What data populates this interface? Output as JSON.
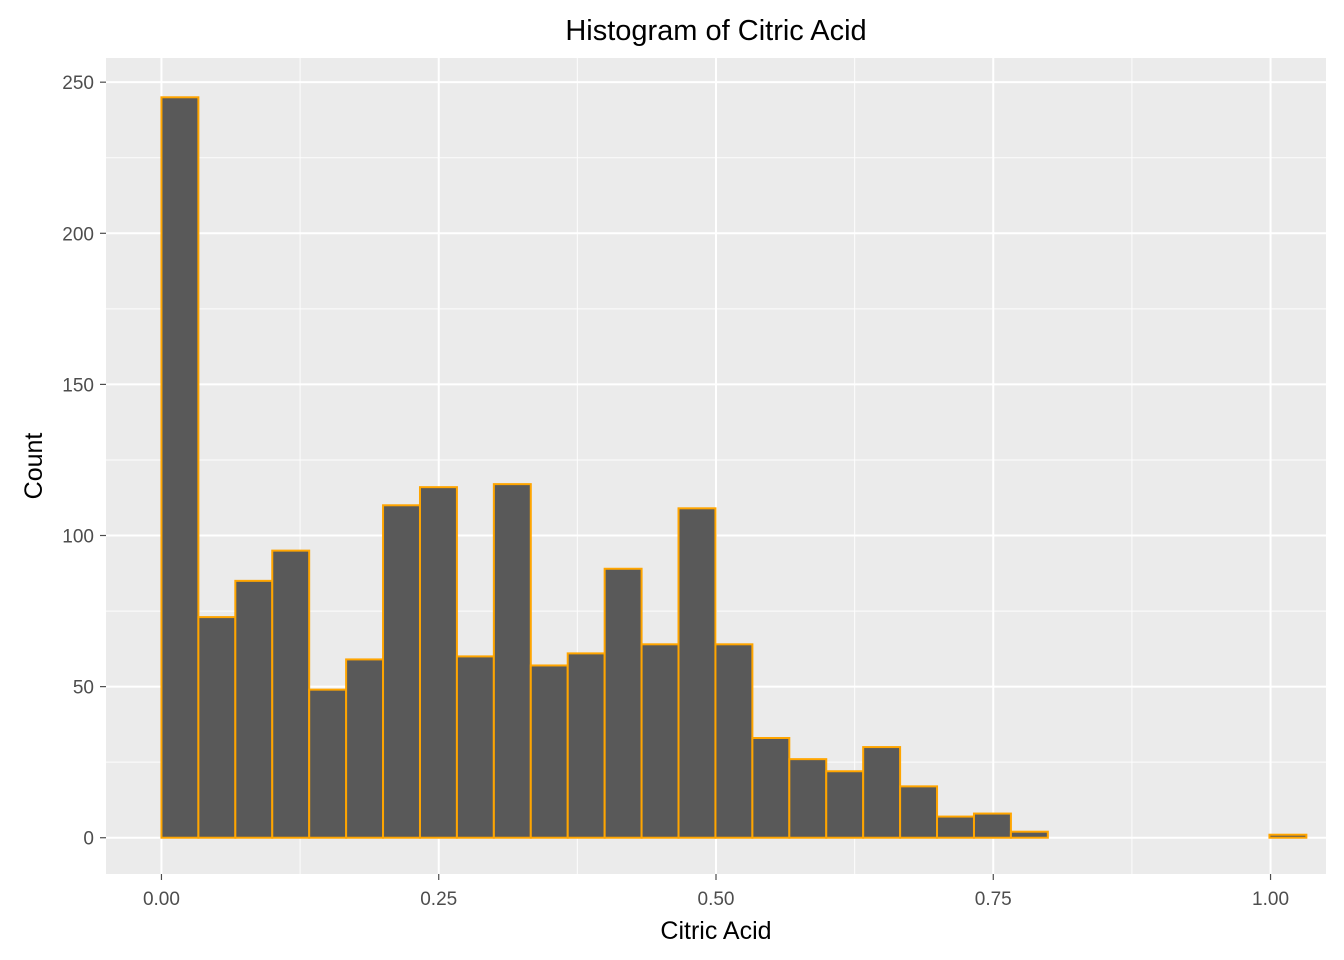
{
  "chart_data": {
    "type": "bar",
    "title": "Histogram of Citric Acid",
    "xlabel": "Citric Acid",
    "ylabel": "Count",
    "bin_width": 0.0333,
    "bin_start": -0.0333,
    "x": [
      -0.0167,
      0.0167,
      0.05,
      0.0833,
      0.1167,
      0.15,
      0.1833,
      0.2167,
      0.25,
      0.2833,
      0.3167,
      0.35,
      0.3833,
      0.4167,
      0.45,
      0.4833,
      0.5167,
      0.55,
      0.5833,
      0.6167,
      0.65,
      0.6833,
      0.7167,
      0.75,
      0.7833,
      0.8167,
      0.85,
      0.8833,
      0.9167,
      0.95,
      0.9833,
      1.0167
    ],
    "values": [
      0,
      245,
      73,
      85,
      95,
      49,
      59,
      110,
      116,
      60,
      117,
      57,
      61,
      89,
      64,
      109,
      64,
      33,
      26,
      22,
      30,
      17,
      7,
      8,
      2,
      0,
      0,
      0,
      0,
      0,
      0,
      1
    ],
    "xlim": [
      -0.05,
      1.05
    ],
    "ylim": [
      -12,
      258
    ],
    "x_ticks": [
      0.0,
      0.25,
      0.5,
      0.75,
      1.0
    ],
    "x_tick_labels": [
      "0.00",
      "0.25",
      "0.50",
      "0.75",
      "1.00"
    ],
    "y_ticks": [
      0,
      50,
      100,
      150,
      200,
      250
    ],
    "y_tick_labels": [
      "0",
      "50",
      "100",
      "150",
      "200",
      "250"
    ],
    "grid": true,
    "bar_fill": "#595959",
    "bar_outline": "#ffa500",
    "panel_background": "#ebebeb"
  }
}
